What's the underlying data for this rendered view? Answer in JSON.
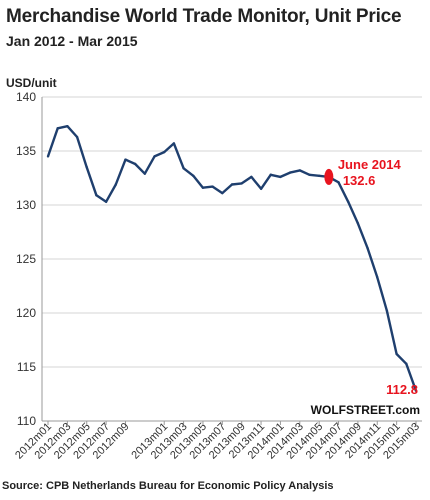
{
  "header": {
    "title": "Merchandise World Trade Monitor, Unit Price",
    "subtitle": "Jan 2012 - Mar 2015",
    "y_unit": "USD/unit"
  },
  "footer": {
    "source": "Source: CPB Netherlands Bureau for Economic Policy Analysis",
    "brand": "WOLFSTREET.com"
  },
  "annotations": {
    "june_label": "June 2014",
    "june_value": "132.6",
    "last_value": "112.8"
  },
  "colors": {
    "line": "#1f3f6e",
    "grid": "#d4d4d4",
    "accent": "#e8141f"
  },
  "chart_data": {
    "type": "line",
    "title": "Merchandise World Trade Monitor, Unit Price",
    "subtitle": "Jan 2012 - Mar 2015",
    "ylabel": "USD/unit",
    "xlabel": "",
    "ylim": [
      110,
      140
    ],
    "yticks": [
      110,
      115,
      120,
      125,
      130,
      135,
      140
    ],
    "grid": "horizontal",
    "x_tick_labels": [
      "2012m01",
      "2012m03",
      "2012m05",
      "2012m07",
      "2012m09",
      "2013m01",
      "2013m03",
      "2013m05",
      "2013m07",
      "2013m09",
      "2013m11",
      "2014m01",
      "2014m03",
      "2014m05",
      "2014m07",
      "2014m09",
      "2014m11",
      "2015m01",
      "2015m03"
    ],
    "series": [
      {
        "values": [
          {
            "x": "2012m01",
            "y": 134.5
          },
          {
            "x": "2012m02",
            "y": 137.1
          },
          {
            "x": "2012m03",
            "y": 137.3
          },
          {
            "x": "2012m04",
            "y": 136.3
          },
          {
            "x": "2012m05",
            "y": 133.5
          },
          {
            "x": "2012m06",
            "y": 130.9
          },
          {
            "x": "2012m07",
            "y": 130.3
          },
          {
            "x": "2012m08",
            "y": 131.9
          },
          {
            "x": "2012m09",
            "y": 134.2
          },
          {
            "x": "2012m10",
            "y": 133.8
          },
          {
            "x": "2012m11",
            "y": 132.9
          },
          {
            "x": "2012m12",
            "y": 134.5
          },
          {
            "x": "2013m01",
            "y": 134.9
          },
          {
            "x": "2013m02",
            "y": 135.7
          },
          {
            "x": "2013m03",
            "y": 133.4
          },
          {
            "x": "2013m04",
            "y": 132.7
          },
          {
            "x": "2013m05",
            "y": 131.6
          },
          {
            "x": "2013m06",
            "y": 131.7
          },
          {
            "x": "2013m07",
            "y": 131.1
          },
          {
            "x": "2013m08",
            "y": 131.9
          },
          {
            "x": "2013m09",
            "y": 132.0
          },
          {
            "x": "2013m10",
            "y": 132.6
          },
          {
            "x": "2013m11",
            "y": 131.5
          },
          {
            "x": "2013m12",
            "y": 132.8
          },
          {
            "x": "2014m01",
            "y": 132.6
          },
          {
            "x": "2014m02",
            "y": 133.0
          },
          {
            "x": "2014m03",
            "y": 133.2
          },
          {
            "x": "2014m04",
            "y": 132.8
          },
          {
            "x": "2014m05",
            "y": 132.7
          },
          {
            "x": "2014m06",
            "y": 132.6
          },
          {
            "x": "2014m07",
            "y": 132.1
          },
          {
            "x": "2014m08",
            "y": 130.3
          },
          {
            "x": "2014m09",
            "y": 128.3
          },
          {
            "x": "2014m10",
            "y": 126.0
          },
          {
            "x": "2014m11",
            "y": 123.3
          },
          {
            "x": "2014m12",
            "y": 120.2
          },
          {
            "x": "2015m01",
            "y": 116.2
          },
          {
            "x": "2015m02",
            "y": 115.3
          },
          {
            "x": "2015m03",
            "y": 112.8
          }
        ]
      }
    ],
    "annotations": [
      {
        "x": "2014m06",
        "y": 132.6,
        "text": "June 2014 132.6"
      },
      {
        "x": "2015m03",
        "y": 112.8,
        "text": "112.8"
      }
    ]
  }
}
